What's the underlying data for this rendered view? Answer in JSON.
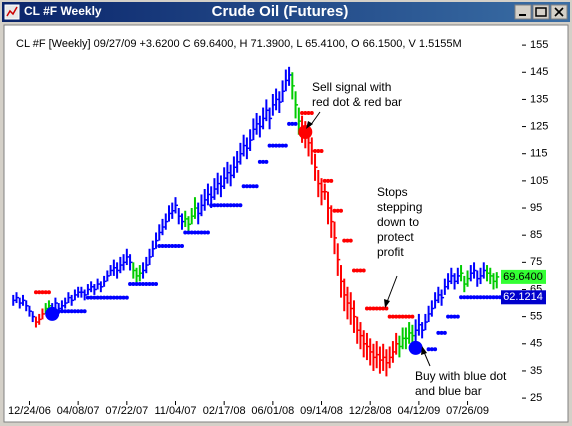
{
  "window_title": "CL #F Weekly",
  "chart_data": {
    "type": "ohlc",
    "title": "Crude Oil (Futures)",
    "info": "CL #F [Weekly] 09/27/09 +3.6200 C 69.6400, H 71.3900, L 65.4100, O 66.1500, V 1.5155M",
    "xlim": [
      -1,
      150
    ],
    "ylim": [
      24.3,
      161.3
    ],
    "yticks": [
      25,
      35,
      45,
      55,
      65,
      75,
      85,
      95,
      105,
      115,
      125,
      135,
      145,
      155
    ],
    "xticks": [
      {
        "value": 5,
        "label": "12/24/06"
      },
      {
        "value": 20,
        "label": "04/08/07"
      },
      {
        "value": 35,
        "label": "07/22/07"
      },
      {
        "value": 50,
        "label": "11/04/07"
      },
      {
        "value": 65,
        "label": "02/17/08"
      },
      {
        "value": 80,
        "label": "06/01/08"
      },
      {
        "value": 95,
        "label": "09/14/08"
      },
      {
        "value": 110,
        "label": "12/28/08"
      },
      {
        "value": 125,
        "label": "04/12/09"
      },
      {
        "value": 140,
        "label": "07/26/09"
      }
    ],
    "high": [
      63,
      64,
      62,
      63,
      61,
      59,
      57,
      55,
      56,
      58,
      60,
      61,
      60,
      62,
      60,
      61,
      62,
      64,
      63,
      65,
      66,
      66,
      65,
      67,
      68,
      67,
      69,
      68,
      70,
      72,
      74,
      76,
      75,
      77,
      78,
      80,
      78,
      75,
      73,
      74,
      75,
      77,
      80,
      83,
      86,
      89,
      91,
      93,
      96,
      97,
      99,
      95,
      93,
      94,
      92,
      95,
      99,
      97,
      100,
      102,
      104,
      103,
      106,
      108,
      107,
      110,
      112,
      111,
      114,
      116,
      119,
      122,
      121,
      124,
      128,
      130,
      129,
      132,
      135,
      132,
      137,
      139,
      138,
      142,
      146,
      147,
      145,
      138,
      132,
      129,
      127,
      124,
      121,
      115,
      109,
      106,
      104,
      101,
      96,
      90,
      82,
      74,
      69,
      66,
      64,
      61,
      55,
      53,
      50,
      49,
      47,
      45,
      46,
      44,
      45,
      43,
      44,
      46,
      49,
      48,
      51,
      51,
      53,
      52,
      54,
      56,
      53,
      56,
      59,
      61,
      64,
      66,
      65,
      69,
      71,
      73,
      71,
      73,
      74,
      70,
      72,
      74,
      75,
      72,
      73,
      75,
      74,
      73,
      71,
      71.39
    ],
    "low": [
      59,
      60,
      58,
      59,
      57,
      55,
      53,
      51,
      52,
      54,
      56,
      57,
      56,
      58,
      56,
      57,
      58,
      60,
      59,
      61,
      62,
      62,
      61,
      63,
      64,
      63,
      65,
      64,
      66,
      68,
      70,
      70,
      69,
      71,
      72,
      74,
      72,
      69,
      67,
      68,
      69,
      71,
      74,
      77,
      80,
      83,
      85,
      87,
      90,
      91,
      93,
      89,
      87,
      88,
      86,
      89,
      91,
      89,
      92,
      94,
      96,
      95,
      98,
      100,
      99,
      102,
      104,
      103,
      106,
      108,
      111,
      114,
      113,
      116,
      120,
      122,
      121,
      124,
      127,
      124,
      129,
      131,
      130,
      134,
      138,
      140,
      135,
      128,
      122,
      119,
      117,
      114,
      111,
      105,
      99,
      96,
      98,
      89,
      84,
      78,
      70,
      62,
      57,
      54,
      52,
      49,
      45,
      43,
      40,
      39,
      37,
      35,
      36,
      34,
      35,
      33,
      36,
      38,
      41,
      40,
      43,
      43,
      45,
      44,
      46,
      48,
      47,
      50,
      53,
      55,
      58,
      60,
      59,
      63,
      65,
      67,
      65,
      67,
      68,
      64,
      66,
      68,
      69,
      66,
      67,
      69,
      68,
      67,
      65,
      65.41
    ],
    "close": [
      61,
      62,
      60,
      61,
      59,
      57,
      55,
      53,
      54,
      56,
      58,
      59,
      58,
      60,
      58,
      59,
      60,
      62,
      61,
      63,
      64,
      64,
      63,
      65,
      66,
      65,
      67,
      66,
      68,
      70,
      72,
      73,
      72,
      74,
      75,
      77,
      75,
      72,
      70,
      71,
      72,
      74,
      77,
      80,
      83,
      86,
      88,
      90,
      93,
      94,
      96,
      92,
      90,
      91,
      89,
      92,
      95,
      93,
      96,
      98,
      100,
      99,
      102,
      104,
      103,
      106,
      108,
      107,
      110,
      112,
      115,
      118,
      117,
      120,
      124,
      126,
      125,
      128,
      131,
      128,
      133,
      135,
      134,
      138,
      142,
      144,
      140,
      133,
      127,
      124,
      122,
      119,
      116,
      110,
      104,
      101,
      101,
      95,
      90,
      84,
      76,
      68,
      63,
      60,
      58,
      55,
      50,
      48,
      45,
      44,
      42,
      40,
      41,
      39,
      40,
      38,
      40,
      42,
      45,
      44,
      47,
      47,
      49,
      48,
      50,
      52,
      50,
      53,
      56,
      58,
      61,
      63,
      62,
      66,
      68,
      70,
      68,
      70,
      71,
      67,
      69,
      71,
      72,
      69,
      70,
      72,
      71,
      70,
      68,
      69.64
    ],
    "bar_colors": [
      "#0000ff",
      "#0000ff",
      "#0000ff",
      "#0000ff",
      "#0000ff",
      "#0000ff",
      "#0000ff",
      "#ff0000",
      "#ff0000",
      "#ff0000",
      "#00cc00",
      "#00cc00",
      "#0000ff",
      "#0000ff",
      "#0000ff",
      "#0000ff",
      "#0000ff",
      "#0000ff",
      "#0000ff",
      "#0000ff",
      "#0000ff",
      "#0000ff",
      "#0000ff",
      "#0000ff",
      "#0000ff",
      "#0000ff",
      "#0000ff",
      "#0000ff",
      "#0000ff",
      "#0000ff",
      "#0000ff",
      "#0000ff",
      "#0000ff",
      "#0000ff",
      "#0000ff",
      "#0000ff",
      "#0000ff",
      "#00cc00",
      "#00cc00",
      "#00cc00",
      "#0000ff",
      "#0000ff",
      "#0000ff",
      "#0000ff",
      "#0000ff",
      "#0000ff",
      "#0000ff",
      "#0000ff",
      "#0000ff",
      "#0000ff",
      "#0000ff",
      "#0000ff",
      "#0000ff",
      "#00cc00",
      "#00cc00",
      "#00cc00",
      "#00cc00",
      "#0000ff",
      "#0000ff",
      "#0000ff",
      "#0000ff",
      "#0000ff",
      "#0000ff",
      "#0000ff",
      "#0000ff",
      "#0000ff",
      "#0000ff",
      "#0000ff",
      "#0000ff",
      "#0000ff",
      "#0000ff",
      "#0000ff",
      "#0000ff",
      "#0000ff",
      "#0000ff",
      "#0000ff",
      "#0000ff",
      "#0000ff",
      "#0000ff",
      "#0000ff",
      "#0000ff",
      "#0000ff",
      "#0000ff",
      "#0000ff",
      "#0000ff",
      "#0000ff",
      "#00cc00",
      "#00cc00",
      "#00cc00",
      "#ff0000",
      "#ff0000",
      "#ff0000",
      "#ff0000",
      "#ff0000",
      "#ff0000",
      "#ff0000",
      "#ff0000",
      "#ff0000",
      "#ff0000",
      "#ff0000",
      "#ff0000",
      "#ff0000",
      "#ff0000",
      "#ff0000",
      "#ff0000",
      "#ff0000",
      "#ff0000",
      "#ff0000",
      "#ff0000",
      "#ff0000",
      "#ff0000",
      "#ff0000",
      "#ff0000",
      "#ff0000",
      "#ff0000",
      "#ff0000",
      "#ff0000",
      "#ff0000",
      "#ff0000",
      "#00cc00",
      "#00cc00",
      "#00cc00",
      "#00cc00",
      "#00cc00",
      "#0000ff",
      "#0000ff",
      "#0000ff",
      "#0000ff",
      "#0000ff",
      "#0000ff",
      "#0000ff",
      "#0000ff",
      "#0000ff",
      "#0000ff",
      "#0000ff",
      "#0000ff",
      "#0000ff",
      "#0000ff",
      "#00cc00",
      "#00cc00",
      "#00cc00",
      "#0000ff",
      "#0000ff",
      "#0000ff",
      "#0000ff",
      "#0000ff",
      "#00cc00",
      "#00cc00",
      "#00cc00",
      "#00cc00"
    ],
    "stops": [
      {
        "color": "#0000ff",
        "values": [
          null,
          null,
          null,
          null,
          null,
          null,
          null,
          null,
          null,
          null,
          null,
          null,
          57,
          57,
          57,
          57,
          57,
          57,
          57,
          57,
          57,
          57,
          57,
          62,
          62,
          62,
          62,
          62,
          62,
          62,
          62,
          62,
          62,
          62,
          62,
          62,
          67,
          67,
          67,
          67,
          67,
          67,
          67,
          67,
          67,
          81,
          81,
          81,
          81,
          81,
          81,
          81,
          81,
          86,
          86,
          86,
          86,
          86,
          86,
          86,
          86,
          96,
          96,
          96,
          96,
          96,
          96,
          96,
          96,
          96,
          96,
          103,
          103,
          103,
          103,
          103,
          112,
          112,
          112,
          118,
          118,
          118,
          118,
          118,
          118,
          126,
          126,
          126,
          null,
          null,
          null,
          null,
          null,
          null,
          null,
          null,
          null,
          null,
          null,
          null,
          null,
          null,
          null,
          null,
          null,
          null,
          null,
          null,
          null,
          null,
          null,
          null,
          null,
          null,
          null,
          null,
          null,
          null,
          null,
          null,
          null,
          null,
          null,
          null,
          null,
          null,
          null,
          null,
          43,
          43,
          43,
          49,
          49,
          49,
          55,
          55,
          55,
          55,
          62.1214,
          62.1214,
          62.1214,
          62.1214,
          62.1214,
          62.1214,
          62.1214,
          62.1214,
          62.1214,
          62.1214,
          62.1214,
          62.1214,
          62.1214,
          62.1214,
          62.1214,
          62.1214
        ]
      },
      {
        "color": "#ff0000",
        "values": [
          null,
          null,
          null,
          null,
          null,
          null,
          null,
          64,
          64,
          64,
          64,
          64,
          null,
          null,
          null,
          null,
          null,
          null,
          null,
          null,
          null,
          null,
          null,
          null,
          null,
          null,
          null,
          null,
          null,
          null,
          null,
          null,
          null,
          null,
          null,
          null,
          null,
          null,
          null,
          null,
          null,
          null,
          null,
          null,
          null,
          null,
          null,
          null,
          null,
          null,
          null,
          null,
          null,
          null,
          null,
          null,
          null,
          null,
          null,
          null,
          null,
          null,
          null,
          null,
          null,
          null,
          null,
          null,
          null,
          null,
          null,
          null,
          null,
          null,
          null,
          null,
          null,
          null,
          null,
          null,
          null,
          null,
          null,
          null,
          null,
          null,
          null,
          null,
          null,
          130,
          130,
          130,
          130,
          116,
          116,
          116,
          105,
          105,
          105,
          94,
          94,
          94,
          83,
          83,
          83,
          72,
          72,
          72,
          72,
          58,
          58,
          58,
          58,
          58,
          58,
          58,
          55,
          55,
          55,
          55,
          55,
          55,
          55,
          55,
          null,
          null,
          null,
          null,
          null,
          null,
          null,
          null,
          null,
          null,
          null,
          null,
          null,
          null,
          null,
          null,
          null,
          null,
          null,
          null,
          null,
          null,
          null,
          null,
          null,
          null
        ]
      }
    ],
    "signals": [
      {
        "index": 12,
        "value": 56,
        "color": "#0000ff"
      },
      {
        "index": 90,
        "value": 123,
        "color": "#ff0000"
      },
      {
        "index": 124,
        "value": 43.5,
        "color": "#0000ff"
      }
    ],
    "price_labels": [
      {
        "value": 69.64,
        "label": "69.6400",
        "color": "#33ff33",
        "text_color": "#000000"
      },
      {
        "value": 62.1214,
        "label": "62.1214",
        "color": "#0000cc",
        "text_color": "#ffffff"
      }
    ],
    "annotations": [
      {
        "lines": [
          "Sell signal with",
          "red dot & red bar"
        ]
      },
      {
        "lines": [
          "Stops",
          "stepping",
          "down to",
          "protect",
          "profit"
        ]
      },
      {
        "lines": [
          "Buy with blue dot",
          "and blue bar"
        ]
      }
    ]
  }
}
